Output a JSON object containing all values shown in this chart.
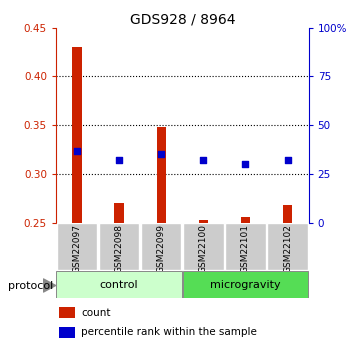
{
  "title": "GDS928 / 8964",
  "samples": [
    "GSM22097",
    "GSM22098",
    "GSM22099",
    "GSM22100",
    "GSM22101",
    "GSM22102"
  ],
  "bar_bottom": 0.25,
  "bar_tops": [
    0.43,
    0.27,
    0.348,
    0.253,
    0.256,
    0.268
  ],
  "blue_y": [
    0.323,
    0.314,
    0.32,
    0.314,
    0.31,
    0.314
  ],
  "ylim": [
    0.25,
    0.45
  ],
  "left_yticks": [
    0.25,
    0.3,
    0.35,
    0.4,
    0.45
  ],
  "right_yticks": [
    0,
    25,
    50,
    75,
    100
  ],
  "right_yticklabels": [
    "0",
    "25",
    "50",
    "75",
    "100%"
  ],
  "dotted_lines": [
    0.3,
    0.35,
    0.4
  ],
  "protocol_groups": [
    {
      "label": "control",
      "indices": [
        0,
        1,
        2
      ],
      "color": "#ccffcc"
    },
    {
      "label": "microgravity",
      "indices": [
        3,
        4,
        5
      ],
      "color": "#55dd55"
    }
  ],
  "bar_color": "#cc2200",
  "blue_color": "#0000cc",
  "bar_width": 0.22,
  "sample_box_color": "#cccccc",
  "legend_items": [
    {
      "color": "#cc2200",
      "label": "count"
    },
    {
      "color": "#0000cc",
      "label": "percentile rank within the sample"
    }
  ]
}
